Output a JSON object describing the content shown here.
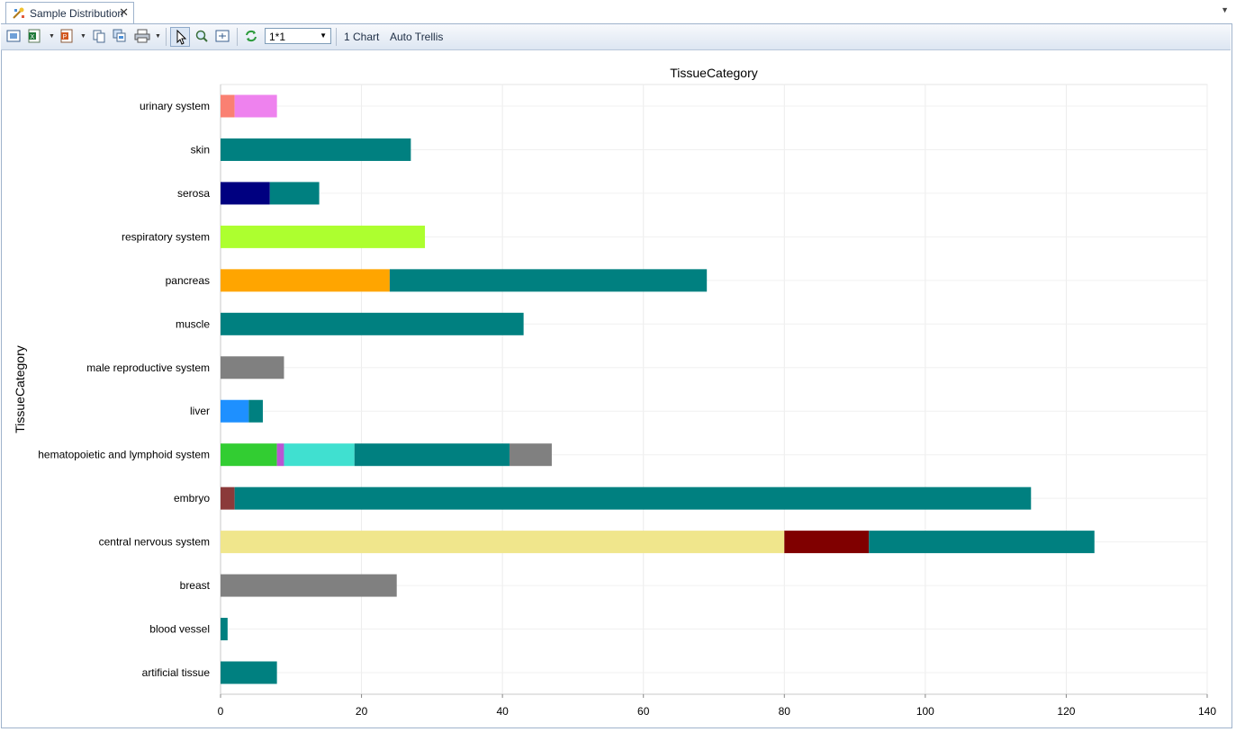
{
  "tab": {
    "title": "Sample Distribution",
    "close": "✕",
    "menu_arrow": "▼"
  },
  "toolbar": {
    "icons": [
      "export-image-icon",
      "excel-icon",
      "powerpoint-icon",
      "copy-icon",
      "copy-all-icon",
      "print-icon",
      "pointer-icon",
      "zoom-icon",
      "fit-icon",
      "refresh-icon"
    ],
    "layout_value": "1*1",
    "chart_count_label": "1 Chart",
    "auto_trellis_label": "Auto Trellis"
  },
  "chart_data": {
    "type": "bar",
    "orientation": "horizontal",
    "stacked": true,
    "title": "TissueCategory",
    "ylabel": "TissueCategory",
    "xlabel": "",
    "xlim": [
      0,
      140
    ],
    "xticks": [
      0,
      20,
      40,
      60,
      80,
      100,
      120,
      140
    ],
    "grid": true,
    "categories": [
      "urinary system",
      "skin",
      "serosa",
      "respiratory system",
      "pancreas",
      "muscle",
      "male reproductive system",
      "liver",
      "hematopoietic and lymphoid system",
      "embryo",
      "central nervous system",
      "breast",
      "blood vessel",
      "artificial tissue"
    ],
    "bars": [
      {
        "category": "urinary system",
        "segments": [
          {
            "value": 2,
            "color": "#FA8072"
          },
          {
            "value": 6,
            "color": "#EE82EE"
          }
        ]
      },
      {
        "category": "skin",
        "segments": [
          {
            "value": 27,
            "color": "#008080"
          }
        ]
      },
      {
        "category": "serosa",
        "segments": [
          {
            "value": 7,
            "color": "#000080"
          },
          {
            "value": 7,
            "color": "#008080"
          }
        ]
      },
      {
        "category": "respiratory system",
        "segments": [
          {
            "value": 29,
            "color": "#ADFF2F"
          }
        ]
      },
      {
        "category": "pancreas",
        "segments": [
          {
            "value": 24,
            "color": "#FFA500"
          },
          {
            "value": 45,
            "color": "#008080"
          }
        ]
      },
      {
        "category": "muscle",
        "segments": [
          {
            "value": 43,
            "color": "#008080"
          }
        ]
      },
      {
        "category": "male reproductive system",
        "segments": [
          {
            "value": 9,
            "color": "#808080"
          }
        ]
      },
      {
        "category": "liver",
        "segments": [
          {
            "value": 4,
            "color": "#1E90FF"
          },
          {
            "value": 2,
            "color": "#008080"
          }
        ]
      },
      {
        "category": "hematopoietic and lymphoid system",
        "segments": [
          {
            "value": 8,
            "color": "#32CD32"
          },
          {
            "value": 1,
            "color": "#BA55D3"
          },
          {
            "value": 10,
            "color": "#40E0D0"
          },
          {
            "value": 22,
            "color": "#008080"
          },
          {
            "value": 6,
            "color": "#808080"
          }
        ]
      },
      {
        "category": "embryo",
        "segments": [
          {
            "value": 2,
            "color": "#8B3A3A"
          },
          {
            "value": 113,
            "color": "#008080"
          }
        ]
      },
      {
        "category": "central nervous system",
        "segments": [
          {
            "value": 80,
            "color": "#F0E68C"
          },
          {
            "value": 12,
            "color": "#800000"
          },
          {
            "value": 32,
            "color": "#008080"
          }
        ]
      },
      {
        "category": "breast",
        "segments": [
          {
            "value": 25,
            "color": "#808080"
          }
        ]
      },
      {
        "category": "blood vessel",
        "segments": [
          {
            "value": 1,
            "color": "#008080"
          }
        ]
      },
      {
        "category": "artificial tissue",
        "segments": [
          {
            "value": 8,
            "color": "#008080"
          }
        ]
      }
    ]
  }
}
